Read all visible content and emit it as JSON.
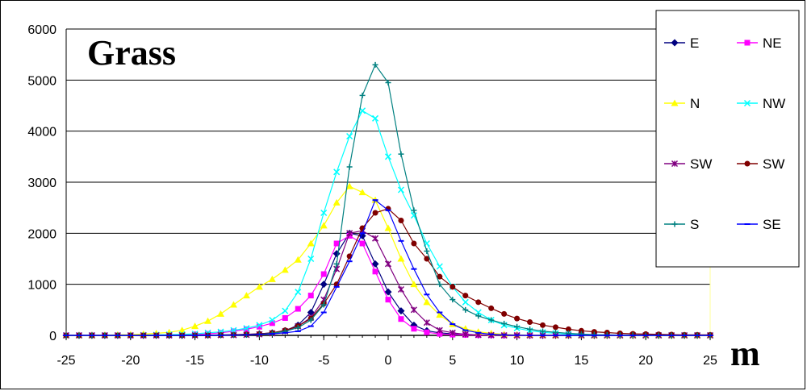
{
  "chart_data": {
    "type": "line",
    "title": "Grass",
    "xlabel": "m",
    "ylabel": "",
    "xlim": [
      -25,
      25
    ],
    "ylim": [
      0,
      6000
    ],
    "x_ticks": [
      -25,
      -20,
      -15,
      -10,
      -5,
      0,
      5,
      10,
      15,
      20,
      25
    ],
    "y_ticks": [
      0,
      1000,
      2000,
      3000,
      4000,
      5000,
      6000
    ],
    "grid": "horizontal",
    "legend_position": "right",
    "x": [
      -25,
      -24,
      -23,
      -22,
      -21,
      -20,
      -19,
      -18,
      -17,
      -16,
      -15,
      -14,
      -13,
      -12,
      -11,
      -10,
      -9,
      -8,
      -7,
      -6,
      -5,
      -4,
      -3,
      -2,
      -1,
      0,
      1,
      2,
      3,
      4,
      5,
      6,
      7,
      8,
      9,
      10,
      11,
      12,
      13,
      14,
      15,
      16,
      17,
      18,
      19,
      20,
      21,
      22,
      23,
      24,
      25
    ],
    "series": [
      {
        "name": "E",
        "color": "#000080",
        "marker": "diamond",
        "values": [
          0,
          0,
          0,
          0,
          0,
          0,
          0,
          0,
          0,
          0,
          5,
          5,
          10,
          15,
          20,
          30,
          50,
          90,
          200,
          450,
          1000,
          1600,
          2000,
          1950,
          1400,
          850,
          480,
          200,
          90,
          50,
          30,
          20,
          10,
          5,
          5,
          5,
          0,
          0,
          0,
          0,
          0,
          0,
          0,
          0,
          0,
          0,
          0,
          0,
          0,
          0,
          0
        ]
      },
      {
        "name": "NE",
        "color": "#ff00ff",
        "marker": "square",
        "values": [
          0,
          0,
          0,
          0,
          0,
          0,
          0,
          5,
          5,
          10,
          20,
          30,
          50,
          80,
          120,
          170,
          240,
          340,
          520,
          780,
          1200,
          1800,
          1950,
          1800,
          1250,
          700,
          320,
          130,
          60,
          30,
          15,
          10,
          5,
          5,
          0,
          0,
          0,
          0,
          0,
          0,
          0,
          0,
          0,
          0,
          0,
          0,
          0,
          0,
          0,
          0,
          0
        ]
      },
      {
        "name": "N",
        "color": "#ffff00",
        "marker": "triangle",
        "values": [
          0,
          0,
          0,
          5,
          10,
          15,
          25,
          40,
          60,
          100,
          180,
          280,
          420,
          600,
          780,
          950,
          1100,
          1280,
          1480,
          1800,
          2150,
          2600,
          2920,
          2800,
          2650,
          2100,
          1500,
          1000,
          650,
          400,
          220,
          130,
          70,
          40,
          20,
          10,
          5,
          5,
          0,
          0,
          0,
          0,
          0,
          0,
          0,
          0,
          0,
          0,
          0,
          0,
          0
        ]
      },
      {
        "name": "NW",
        "color": "#00ffff",
        "marker": "x",
        "values": [
          0,
          0,
          0,
          0,
          0,
          0,
          5,
          10,
          15,
          20,
          30,
          50,
          70,
          100,
          140,
          200,
          300,
          480,
          850,
          1500,
          2400,
          3200,
          3900,
          4400,
          4250,
          3500,
          2850,
          2350,
          1800,
          1350,
          950,
          650,
          450,
          300,
          200,
          140,
          90,
          60,
          40,
          20,
          10,
          5,
          5,
          0,
          0,
          0,
          0,
          0,
          0,
          0,
          0
        ]
      },
      {
        "name": "SW",
        "color": "#800080",
        "marker": "star",
        "values": [
          0,
          0,
          0,
          0,
          0,
          0,
          0,
          0,
          0,
          0,
          0,
          0,
          5,
          5,
          10,
          20,
          40,
          80,
          180,
          350,
          700,
          1300,
          2000,
          2050,
          1900,
          1400,
          900,
          500,
          250,
          100,
          50,
          20,
          10,
          5,
          0,
          0,
          0,
          0,
          0,
          0,
          0,
          0,
          0,
          0,
          0,
          0,
          0,
          0,
          0,
          0,
          0
        ]
      },
      {
        "name": "SW",
        "color": "#800000",
        "marker": "circle",
        "values": [
          0,
          0,
          0,
          0,
          0,
          0,
          0,
          0,
          0,
          0,
          0,
          0,
          5,
          10,
          20,
          30,
          50,
          100,
          180,
          330,
          620,
          1000,
          1550,
          2100,
          2400,
          2480,
          2250,
          1800,
          1500,
          1150,
          950,
          780,
          650,
          530,
          420,
          330,
          260,
          200,
          160,
          120,
          90,
          70,
          55,
          40,
          30,
          25,
          20,
          15,
          10,
          10,
          10
        ]
      },
      {
        "name": "S",
        "color": "#008080",
        "marker": "plus",
        "values": [
          0,
          0,
          0,
          0,
          0,
          0,
          0,
          0,
          0,
          0,
          0,
          0,
          0,
          5,
          10,
          20,
          40,
          80,
          150,
          300,
          600,
          1400,
          3300,
          4700,
          5300,
          4950,
          3550,
          2450,
          1650,
          1000,
          700,
          500,
          380,
          300,
          230,
          170,
          120,
          80,
          60,
          40,
          25,
          15,
          10,
          5,
          5,
          0,
          0,
          0,
          0,
          0,
          0
        ]
      },
      {
        "name": "SE",
        "color": "#0000ff",
        "marker": "dash",
        "values": [
          0,
          0,
          0,
          0,
          0,
          0,
          0,
          0,
          0,
          0,
          0,
          0,
          0,
          5,
          10,
          20,
          30,
          50,
          80,
          180,
          450,
          950,
          1450,
          2000,
          2650,
          2450,
          1850,
          1300,
          800,
          450,
          220,
          100,
          50,
          20,
          10,
          5,
          0,
          0,
          0,
          0,
          0,
          0,
          0,
          0,
          0,
          0,
          0,
          0,
          0,
          0,
          0
        ]
      }
    ]
  }
}
